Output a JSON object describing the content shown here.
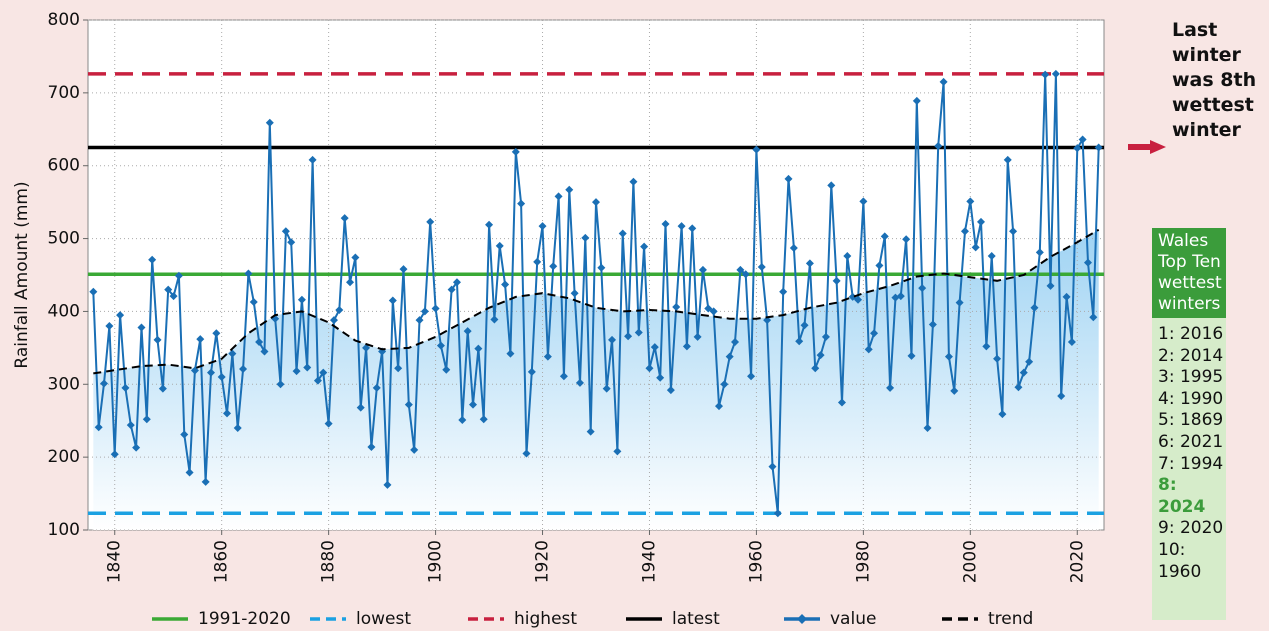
{
  "chart_data": {
    "type": "line",
    "y_label": "Rainfall Amount (mm)",
    "xlim": [
      1835,
      2025
    ],
    "xticks": [
      1840,
      1860,
      1880,
      1900,
      1920,
      1940,
      1960,
      1980,
      2000,
      2020
    ],
    "ylim": [
      100,
      800
    ],
    "yticks": [
      100,
      200,
      300,
      400,
      500,
      600,
      700,
      800
    ],
    "grid": true,
    "reference_lines": [
      {
        "name": "1991-2020",
        "value": 451,
        "color": "#3aa935",
        "dashed": false
      },
      {
        "name": "lowest",
        "value": 123,
        "color": "#1ba1e2",
        "dashed": true
      },
      {
        "name": "highest",
        "value": 726,
        "color": "#c8203f",
        "dashed": true
      },
      {
        "name": "latest",
        "value": 625,
        "color": "#000000",
        "dashed": false
      }
    ],
    "series": [
      {
        "name": "value",
        "color": "#1a6fb5",
        "x": [
          1836,
          1837,
          1838,
          1839,
          1840,
          1841,
          1842,
          1843,
          1844,
          1845,
          1846,
          1847,
          1848,
          1849,
          1850,
          1851,
          1852,
          1853,
          1854,
          1855,
          1856,
          1857,
          1858,
          1859,
          1860,
          1861,
          1862,
          1863,
          1864,
          1865,
          1866,
          1867,
          1868,
          1869,
          1870,
          1871,
          1872,
          1873,
          1874,
          1875,
          1876,
          1877,
          1878,
          1879,
          1880,
          1881,
          1882,
          1883,
          1884,
          1885,
          1886,
          1887,
          1888,
          1889,
          1890,
          1891,
          1892,
          1893,
          1894,
          1895,
          1896,
          1897,
          1898,
          1899,
          1900,
          1901,
          1902,
          1903,
          1904,
          1905,
          1906,
          1907,
          1908,
          1909,
          1910,
          1911,
          1912,
          1913,
          1914,
          1915,
          1916,
          1917,
          1918,
          1919,
          1920,
          1921,
          1922,
          1923,
          1924,
          1925,
          1926,
          1927,
          1928,
          1929,
          1930,
          1931,
          1932,
          1933,
          1934,
          1935,
          1936,
          1937,
          1938,
          1939,
          1940,
          1941,
          1942,
          1943,
          1944,
          1945,
          1946,
          1947,
          1948,
          1949,
          1950,
          1951,
          1952,
          1953,
          1954,
          1955,
          1956,
          1957,
          1958,
          1959,
          1960,
          1961,
          1962,
          1963,
          1964,
          1965,
          1966,
          1967,
          1968,
          1969,
          1970,
          1971,
          1972,
          1973,
          1974,
          1975,
          1976,
          1977,
          1978,
          1979,
          1980,
          1981,
          1982,
          1983,
          1984,
          1985,
          1986,
          1987,
          1988,
          1989,
          1990,
          1991,
          1992,
          1993,
          1994,
          1995,
          1996,
          1997,
          1998,
          1999,
          2000,
          2001,
          2002,
          2003,
          2004,
          2005,
          2006,
          2007,
          2008,
          2009,
          2010,
          2011,
          2012,
          2013,
          2014,
          2015,
          2016,
          2017,
          2018,
          2019,
          2020,
          2021,
          2022,
          2023,
          2024
        ],
        "values": [
          427,
          241,
          301,
          380,
          204,
          395,
          295,
          244,
          213,
          378,
          252,
          471,
          361,
          294,
          430,
          421,
          449,
          231,
          179,
          319,
          362,
          166,
          316,
          370,
          310,
          260,
          342,
          240,
          321,
          452,
          413,
          358,
          345,
          659,
          390,
          300,
          510,
          495,
          318,
          416,
          323,
          608,
          305,
          316,
          246,
          388,
          402,
          528,
          440,
          474,
          268,
          350,
          214,
          295,
          345,
          162,
          415,
          322,
          458,
          272,
          210,
          388,
          400,
          523,
          404,
          353,
          320,
          430,
          440,
          251,
          373,
          272,
          349,
          252,
          519,
          389,
          490,
          437,
          342,
          619,
          548,
          205,
          317,
          468,
          517,
          338,
          462,
          558,
          311,
          567,
          425,
          302,
          501,
          235,
          550,
          460,
          294,
          361,
          208,
          507,
          366,
          578,
          371,
          489,
          322,
          351,
          309,
          520,
          292,
          406,
          517,
          352,
          514,
          365,
          457,
          404,
          400,
          270,
          300,
          338,
          358,
          457,
          451,
          311,
          622,
          461,
          388,
          187,
          123,
          427,
          582,
          487,
          359,
          381,
          466,
          322,
          340,
          365,
          573,
          442,
          275,
          476,
          420,
          416,
          551,
          348,
          370,
          463,
          503,
          295,
          419,
          421,
          499,
          339,
          689,
          432,
          240,
          382,
          627,
          715,
          338,
          291,
          412,
          510,
          551,
          488,
          523,
          352,
          476,
          335,
          259,
          608,
          510,
          296,
          316,
          331,
          405,
          481,
          725,
          435,
          726,
          284,
          420,
          358,
          624,
          636,
          467,
          392,
          625
        ]
      },
      {
        "name": "trend",
        "color": "#000000",
        "dashed": true,
        "x": [
          1836,
          1845,
          1850,
          1855,
          1860,
          1865,
          1870,
          1875,
          1880,
          1885,
          1890,
          1895,
          1900,
          1905,
          1910,
          1915,
          1920,
          1925,
          1930,
          1935,
          1940,
          1945,
          1950,
          1955,
          1960,
          1965,
          1970,
          1975,
          1980,
          1985,
          1990,
          1995,
          2000,
          2005,
          2010,
          2015,
          2020,
          2024
        ],
        "values": [
          315,
          325,
          327,
          322,
          335,
          370,
          395,
          400,
          385,
          360,
          348,
          350,
          365,
          385,
          405,
          420,
          425,
          418,
          405,
          400,
          402,
          400,
          395,
          390,
          390,
          395,
          405,
          412,
          425,
          435,
          448,
          452,
          447,
          442,
          450,
          475,
          495,
          512
        ]
      }
    ],
    "note": "Last winter was 8th wettest winter",
    "top_ten": {
      "title": "Wales Top Ten wettest winters",
      "items": [
        "1: 2016",
        "2: 2014",
        "3: 1995",
        "4: 1990",
        "5: 1869",
        "6: 2021",
        "7: 1994",
        "8: 2024",
        "9: 2020",
        "10: 1960"
      ],
      "highlight": 7
    }
  }
}
